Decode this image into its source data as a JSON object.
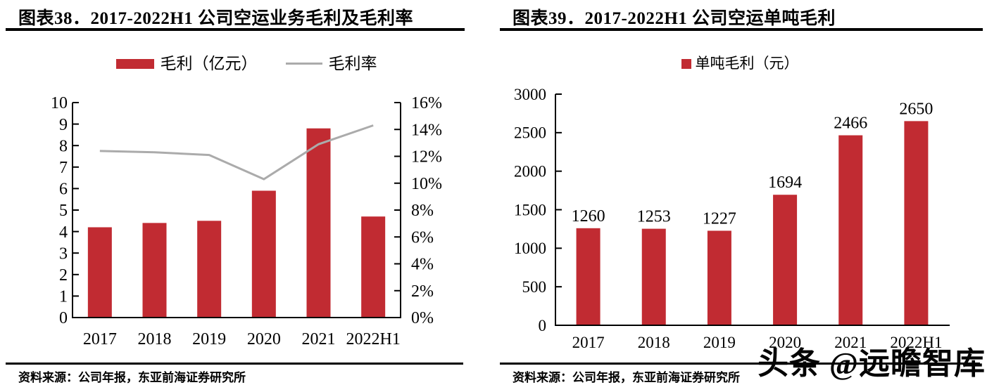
{
  "watermark": "头条 @远瞻智库",
  "colors": {
    "bar": "#C12B32",
    "line": "#ABABAB",
    "rule": "#000000"
  },
  "panels": [
    {
      "title": "图表38．2017-2022H1 公司空运业务毛利及毛利率",
      "legend": [
        {
          "label": "毛利（亿元）",
          "type": "bar",
          "color": "#C12B32"
        },
        {
          "label": "毛利率",
          "type": "line",
          "color": "#ABABAB"
        }
      ],
      "source": "资料来源：公司年报，东亚前海证券研究所"
    },
    {
      "title": "图表39．2017-2022H1 公司空运单吨毛利",
      "legend": [
        {
          "label": "单吨毛利（元）",
          "type": "bar",
          "color": "#C12B32"
        }
      ],
      "source": "资料来源：公司年报，东亚前海证券研究所"
    }
  ],
  "chart_data": [
    {
      "type": "combo-bar-line",
      "title": "2017-2022H1 公司空运业务毛利及毛利率",
      "categories": [
        "2017",
        "2018",
        "2019",
        "2020",
        "2021",
        "2022H1"
      ],
      "series": [
        {
          "name": "毛利（亿元）",
          "type": "bar",
          "axis": "left",
          "color": "#C12B32",
          "values": [
            4.2,
            4.4,
            4.5,
            5.9,
            8.8,
            4.7
          ]
        },
        {
          "name": "毛利率",
          "type": "line",
          "axis": "right",
          "color": "#ABABAB",
          "unit": "%",
          "values": [
            12.4,
            12.3,
            12.1,
            10.3,
            12.9,
            14.3
          ]
        }
      ],
      "left_axis": {
        "min": 0,
        "max": 10,
        "step": 1
      },
      "right_axis": {
        "min": 0,
        "max": 16,
        "step": 2,
        "suffix": "%"
      },
      "grid": false,
      "legend_position": "top"
    },
    {
      "type": "bar",
      "title": "2017-2022H1 公司空运单吨毛利",
      "categories": [
        "2017",
        "2018",
        "2019",
        "2020",
        "2021",
        "2022H1"
      ],
      "series": [
        {
          "name": "单吨毛利（元）",
          "type": "bar",
          "axis": "left",
          "color": "#C12B32",
          "values": [
            1260,
            1253,
            1227,
            1694,
            2466,
            2650
          ],
          "data_labels": true
        }
      ],
      "left_axis": {
        "min": 0,
        "max": 3000,
        "step": 500
      },
      "grid": false,
      "legend_position": "top"
    }
  ]
}
